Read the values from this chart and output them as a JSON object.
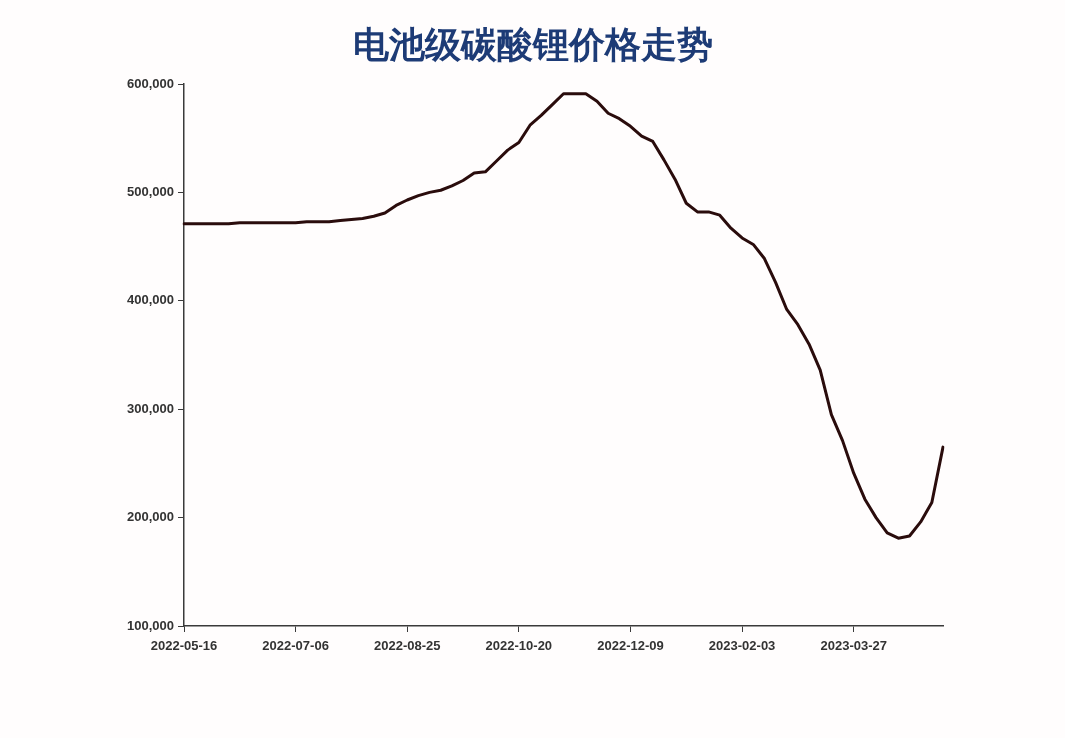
{
  "chart_data": {
    "type": "line",
    "title": "电池级碳酸锂价格走势",
    "categories": [
      "2022-05-16",
      null,
      null,
      null,
      null,
      null,
      null,
      null,
      null,
      null,
      "2022-07-06",
      null,
      null,
      null,
      null,
      null,
      null,
      null,
      null,
      null,
      "2022-08-25",
      null,
      null,
      null,
      null,
      null,
      null,
      null,
      null,
      null,
      "2022-10-20",
      null,
      null,
      null,
      null,
      null,
      null,
      null,
      null,
      null,
      "2022-12-09",
      null,
      null,
      null,
      null,
      null,
      null,
      null,
      null,
      null,
      "2023-02-03",
      null,
      null,
      null,
      null,
      null,
      null,
      null,
      null,
      null,
      "2023-03-27",
      null,
      null,
      null,
      null,
      null,
      null,
      null,
      null
    ],
    "series": [
      {
        "color": "#2a0c0c",
        "values": [
          471000,
          471000,
          471000,
          471000,
          471000,
          472000,
          472000,
          472000,
          472000,
          472000,
          472000,
          473000,
          473000,
          473000,
          474000,
          475000,
          476000,
          478000,
          481000,
          488000,
          493000,
          497000,
          500000,
          502000,
          506000,
          511000,
          518000,
          519000,
          529000,
          539000,
          546000,
          562000,
          571000,
          581000,
          591000,
          591000,
          591000,
          584000,
          573000,
          568000,
          561000,
          552000,
          547000,
          530000,
          512000,
          490000,
          482000,
          482000,
          479000,
          467000,
          458000,
          452000,
          439000,
          417000,
          392000,
          378000,
          360000,
          336000,
          295000,
          271000,
          241000,
          217000,
          200000,
          186000,
          181000,
          183000,
          196000,
          214000,
          265000
        ]
      }
    ],
    "ylim": [
      100000,
      600000
    ],
    "yticks": [
      {
        "value": 100000,
        "label": "100,000"
      },
      {
        "value": 200000,
        "label": "200,000"
      },
      {
        "value": 300000,
        "label": "300,000"
      },
      {
        "value": 400000,
        "label": "400,000"
      },
      {
        "value": 500000,
        "label": "500,000"
      },
      {
        "value": 600000,
        "label": "600,000"
      }
    ],
    "grid": false,
    "legend": false,
    "marker": "none",
    "line_style": "solid"
  }
}
